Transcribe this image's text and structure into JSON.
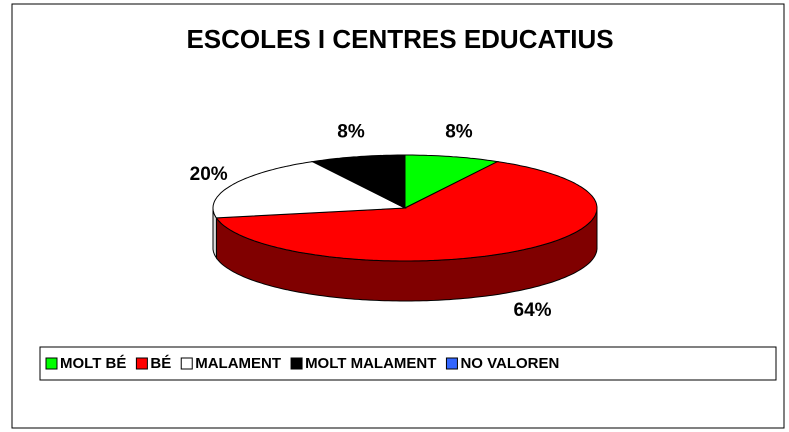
{
  "chart_data": {
    "type": "pie",
    "title": "ESCOLES I CENTRES EDUCATIUS",
    "categories": [
      "MOLT BÉ",
      "BÉ",
      "MALAMENT",
      "MOLT MALAMENT",
      "NO VALOREN"
    ],
    "values": [
      8,
      64,
      20,
      8,
      0
    ],
    "value_labels": [
      "8%",
      "64%",
      "20%",
      "8%",
      null
    ],
    "colors": [
      "#00ff00",
      "#ff0000",
      "#ffffff",
      "#000000",
      "#3366ff"
    ],
    "legend": "bottom"
  }
}
